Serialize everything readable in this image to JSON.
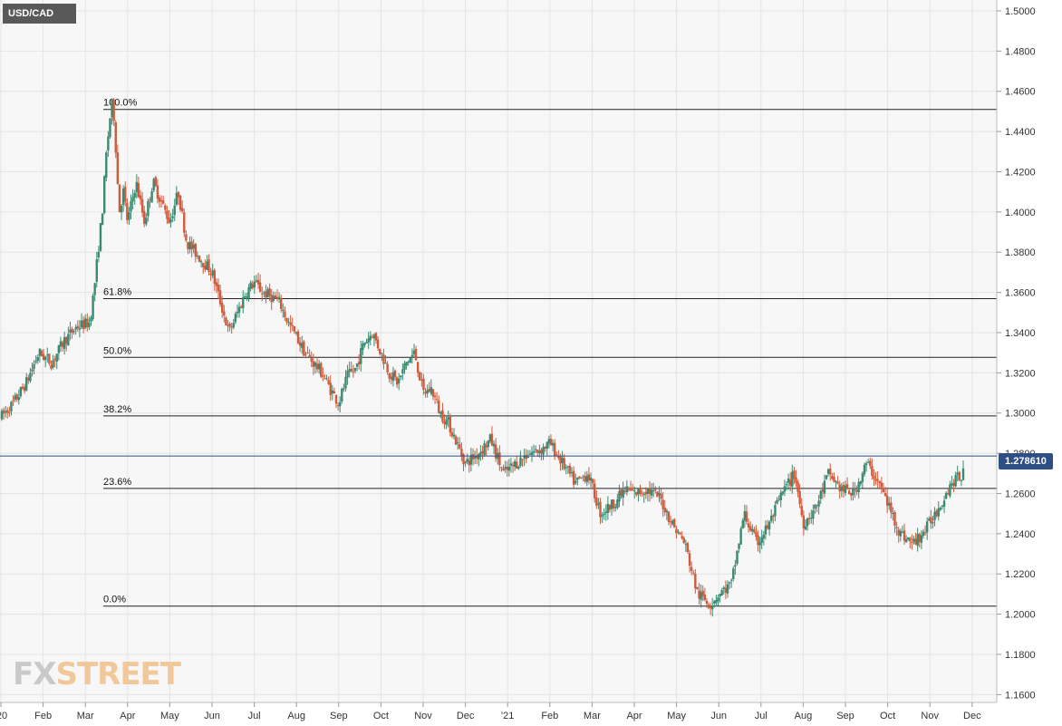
{
  "symbol": "USD/CAD",
  "current_price": "1.278610",
  "logo": {
    "part1": "FX",
    "part2": "STREET"
  },
  "colors": {
    "up": "#3a8a72",
    "down": "#d05a3c",
    "grid": "#e4e4e4",
    "fib_line": "#222222",
    "price_line": "#2e4f84",
    "background": "#f7f7f7"
  },
  "chart_data": {
    "type": "candlestick",
    "title": "USD/CAD",
    "y_ticks": [
      "1.5000",
      "1.4800",
      "1.4600",
      "1.4400",
      "1.4200",
      "1.4000",
      "1.3800",
      "1.3600",
      "1.3400",
      "1.3200",
      "1.3000",
      "1.2800",
      "1.2600",
      "1.2400",
      "1.2200",
      "1.2000",
      "1.1800",
      "1.1600"
    ],
    "ylim": [
      1.1561,
      1.5054
    ],
    "x_labels": [
      "'20",
      "Feb",
      "Mar",
      "Apr",
      "May",
      "Jun",
      "Jul",
      "Aug",
      "Sep",
      "Oct",
      "Nov",
      "Dec",
      "'21",
      "Feb",
      "Mar",
      "Apr",
      "May",
      "Jun",
      "Jul",
      "Aug",
      "Sep",
      "Oct",
      "Nov",
      "Dec"
    ],
    "x_positions_months": [
      0,
      1,
      2,
      3,
      4,
      5,
      6,
      7,
      8,
      9,
      10,
      11,
      12,
      13,
      14,
      15,
      16,
      17,
      18,
      19,
      20,
      21,
      22,
      23
    ],
    "fibonacci": [
      {
        "label": "100.0%",
        "value": 1.451
      },
      {
        "label": "61.8%",
        "value": 1.3569
      },
      {
        "label": "50.0%",
        "value": 1.3277
      },
      {
        "label": "38.2%",
        "value": 1.2986
      },
      {
        "label": "23.6%",
        "value": 1.2625
      },
      {
        "label": "0.0%",
        "value": 1.204
      }
    ],
    "last_price": 1.27861,
    "grid": true,
    "path_months": [
      0,
      0.3,
      0.6,
      0.9,
      1.2,
      1.5,
      1.8,
      2.1,
      2.2,
      2.3,
      2.4,
      2.5,
      2.6,
      2.65,
      2.7,
      2.8,
      2.9,
      3.0,
      3.2,
      3.4,
      3.6,
      3.8,
      4.0,
      4.2,
      4.4,
      4.6,
      4.8,
      5.0,
      5.2,
      5.4,
      5.6,
      5.8,
      6.0,
      6.2,
      6.4,
      6.6,
      6.8,
      7.0,
      7.2,
      7.4,
      7.6,
      7.8,
      8.0,
      8.2,
      8.4,
      8.6,
      8.8,
      9.0,
      9.2,
      9.4,
      9.6,
      9.8,
      10.0,
      10.2,
      10.4,
      10.6,
      10.8,
      11.0,
      11.3,
      11.6,
      11.9,
      12.2,
      12.5,
      12.8,
      13.0,
      13.3,
      13.6,
      13.9,
      14.2,
      14.5,
      14.8,
      15.0,
      15.3,
      15.6,
      15.9,
      16.2,
      16.5,
      16.8,
      17.0,
      17.3,
      17.6,
      17.9,
      18.2,
      18.5,
      18.8,
      19.0,
      19.3,
      19.6,
      19.9,
      20.2,
      20.5,
      20.8,
      21.0,
      21.3,
      21.6,
      21.9,
      22.2,
      22.5,
      22.8
    ],
    "path_values": [
      1.298,
      1.305,
      1.315,
      1.33,
      1.325,
      1.336,
      1.343,
      1.345,
      1.36,
      1.38,
      1.4,
      1.43,
      1.45,
      1.455,
      1.44,
      1.4,
      1.41,
      1.395,
      1.415,
      1.395,
      1.415,
      1.405,
      1.395,
      1.41,
      1.385,
      1.38,
      1.375,
      1.37,
      1.355,
      1.34,
      1.35,
      1.36,
      1.365,
      1.36,
      1.358,
      1.355,
      1.345,
      1.338,
      1.33,
      1.325,
      1.32,
      1.312,
      1.305,
      1.318,
      1.322,
      1.335,
      1.34,
      1.33,
      1.32,
      1.315,
      1.325,
      1.33,
      1.31,
      1.312,
      1.3,
      1.295,
      1.285,
      1.275,
      1.28,
      1.287,
      1.27,
      1.275,
      1.28,
      1.282,
      1.285,
      1.275,
      1.265,
      1.27,
      1.25,
      1.255,
      1.262,
      1.26,
      1.262,
      1.258,
      1.245,
      1.235,
      1.21,
      1.205,
      1.21,
      1.215,
      1.25,
      1.235,
      1.245,
      1.26,
      1.27,
      1.245,
      1.253,
      1.27,
      1.262,
      1.26,
      1.275,
      1.265,
      1.255,
      1.24,
      1.235,
      1.242,
      1.253,
      1.265,
      1.27
    ]
  }
}
